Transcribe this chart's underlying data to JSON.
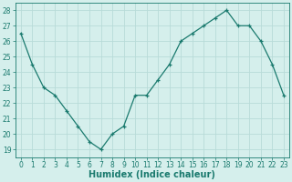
{
  "x": [
    0,
    1,
    2,
    3,
    4,
    5,
    6,
    7,
    8,
    9,
    10,
    11,
    12,
    13,
    14,
    15,
    16,
    17,
    18,
    19,
    20,
    21,
    22,
    23
  ],
  "y": [
    26.5,
    24.5,
    23.0,
    22.5,
    21.5,
    20.5,
    19.5,
    19.0,
    20.0,
    20.5,
    22.5,
    22.5,
    23.5,
    24.5,
    26.0,
    26.5,
    27.0,
    27.5,
    28.0,
    27.0,
    27.0,
    26.0,
    24.5,
    22.5
  ],
  "line_color": "#1a7a6e",
  "marker": "+",
  "bg_color": "#d5efec",
  "grid_color": "#b8dbd8",
  "xlabel": "Humidex (Indice chaleur)",
  "xlim": [
    -0.5,
    23.5
  ],
  "ylim": [
    18.5,
    28.5
  ],
  "yticks": [
    19,
    20,
    21,
    22,
    23,
    24,
    25,
    26,
    27,
    28
  ],
  "xticks": [
    0,
    1,
    2,
    3,
    4,
    5,
    6,
    7,
    8,
    9,
    10,
    11,
    12,
    13,
    14,
    15,
    16,
    17,
    18,
    19,
    20,
    21,
    22,
    23
  ],
  "tick_color": "#1a7a6e",
  "label_fontsize": 7,
  "tick_fontsize": 5.5
}
